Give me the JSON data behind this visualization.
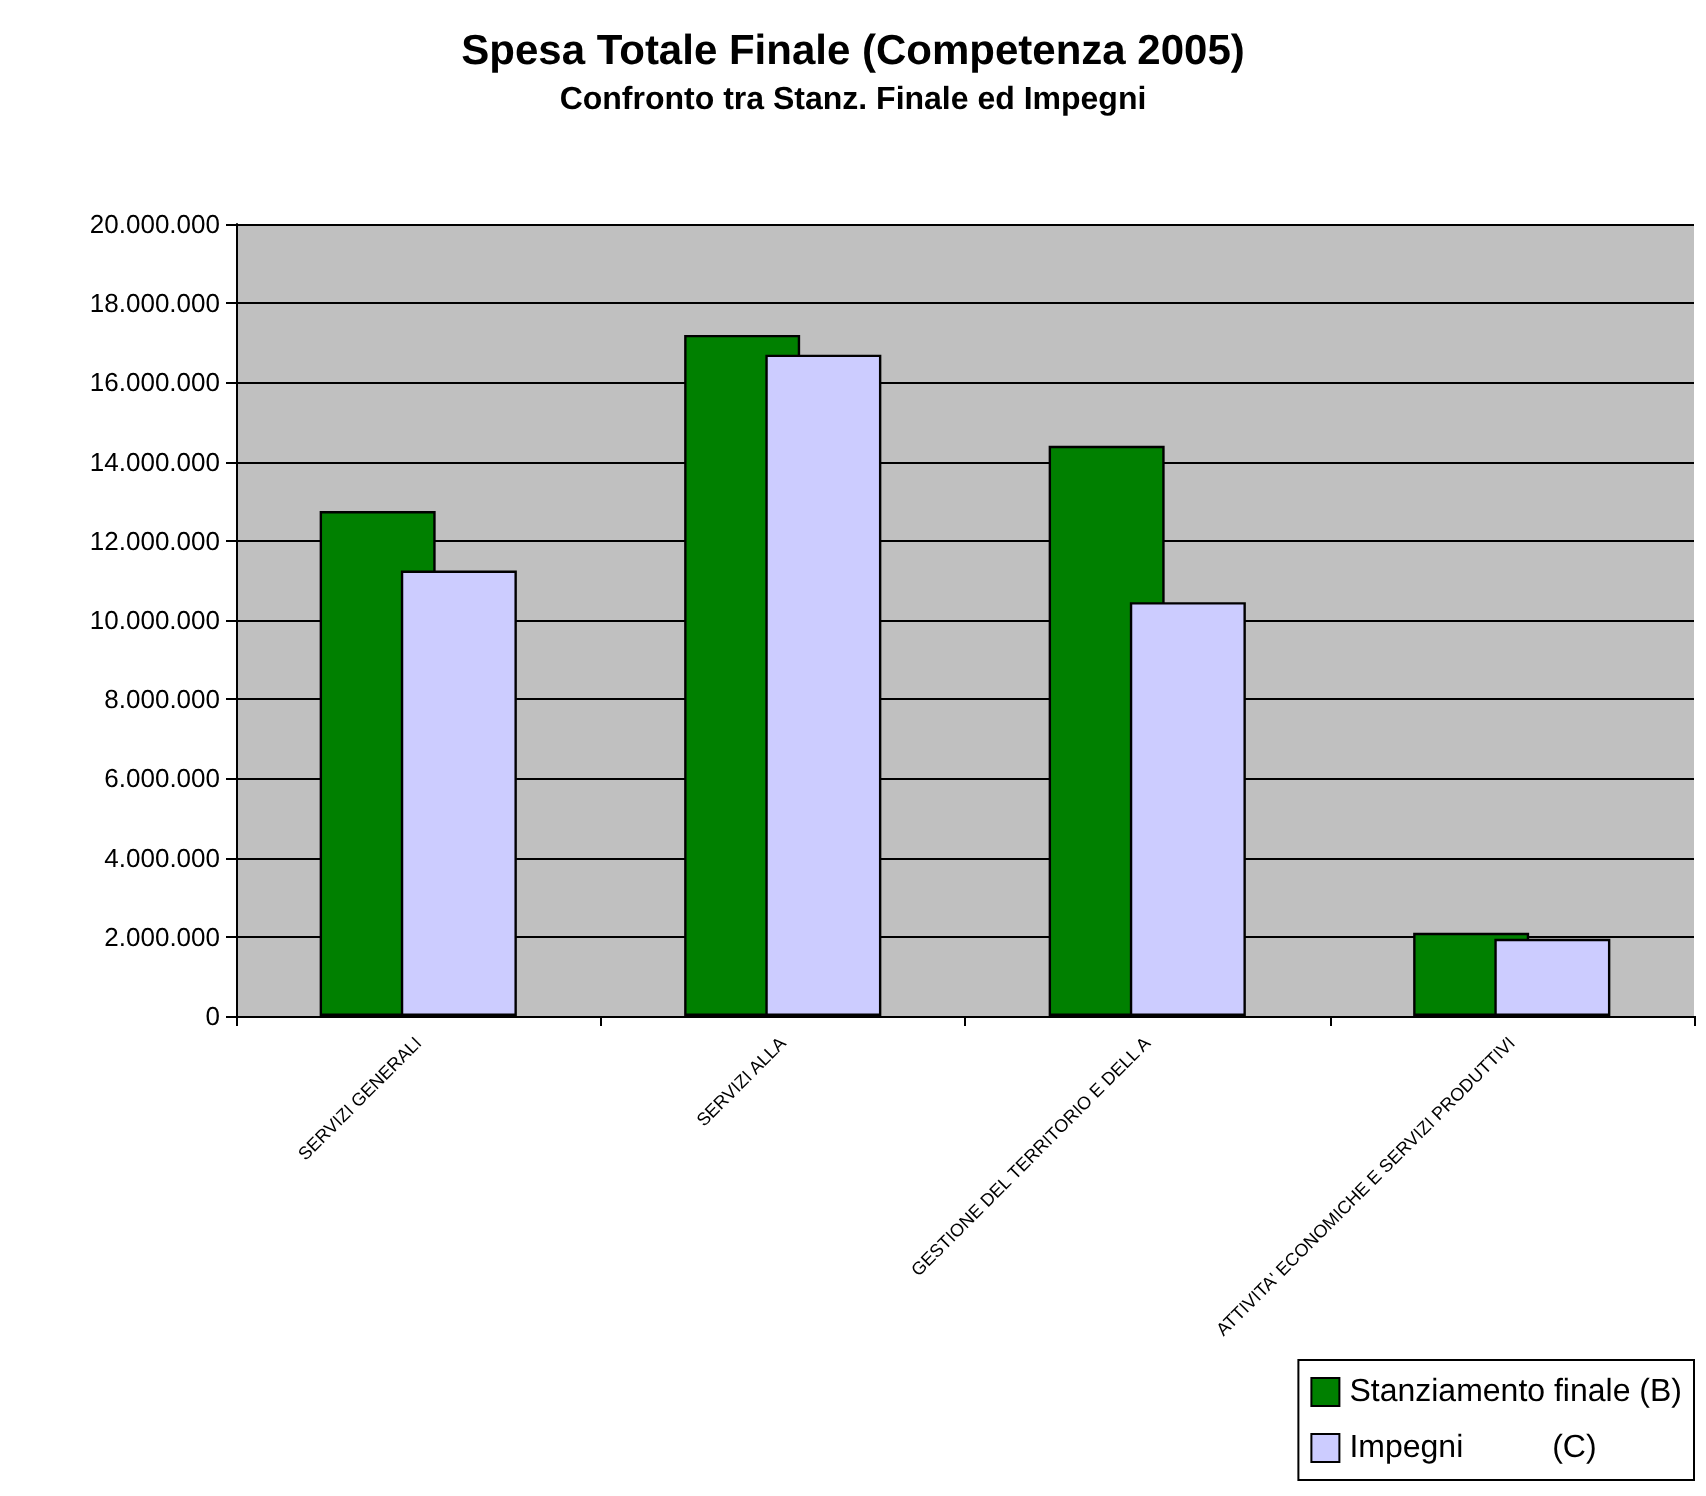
{
  "chart_data": {
    "type": "bar",
    "title": "Spesa Totale Finale (Competenza 2005)",
    "subtitle": "Confronto tra Stanz. Finale ed Impegni",
    "categories": [
      "SERVIZI GENERALI",
      "SERVIZI ALLA",
      "GESTIONE DEL TERRITORIO E DELL A",
      "ATTIVITA' ECONOMICHE E SERVIZI PRODUTTIVI"
    ],
    "series": [
      {
        "name": "Stanziamento finale (B)",
        "color": "#008000",
        "values": [
          12750000,
          17200000,
          14400000,
          2100000
        ]
      },
      {
        "name": "Impegni          (C)",
        "color": "#ccccff",
        "values": [
          11250000,
          16700000,
          10450000,
          1950000
        ]
      }
    ],
    "ylim": [
      0,
      20000000
    ],
    "yticks": [
      0,
      {
        "value": 2000000,
        "label": "2.000.000"
      },
      {
        "value": 4000000,
        "label": "4.000.000"
      },
      {
        "value": 6000000,
        "label": "6.000.000"
      },
      {
        "value": 8000000,
        "label": "8.000.000"
      },
      {
        "value": 10000000,
        "label": "10.000.000"
      },
      {
        "value": 12000000,
        "label": "12.000.000"
      },
      {
        "value": 14000000,
        "label": "14.000.000"
      },
      {
        "value": 16000000,
        "label": "16.000.000"
      },
      {
        "value": 18000000,
        "label": "18.000.000"
      },
      {
        "value": 20000000,
        "label": "20.000.000"
      }
    ],
    "grid": "y",
    "legend": "bottom right"
  }
}
